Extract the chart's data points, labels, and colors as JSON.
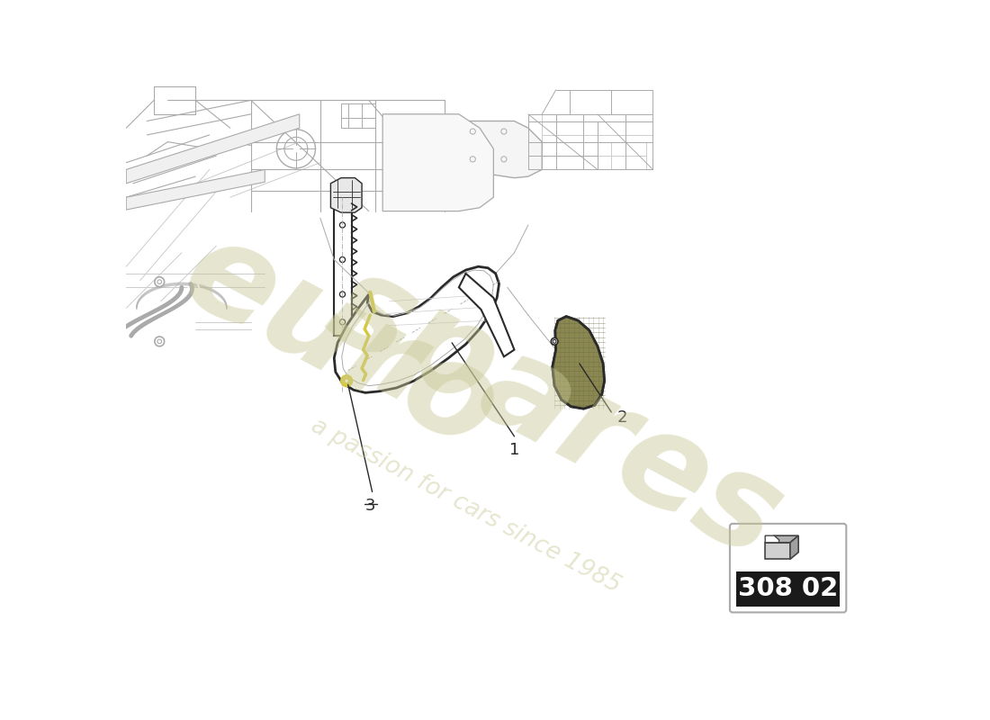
{
  "bg_color": "#ffffff",
  "line_color": "#2a2a2a",
  "mid_line_color": "#555555",
  "light_line_color": "#aaaaaa",
  "very_light_color": "#cccccc",
  "yellow_color": "#d4c840",
  "yellow_light": "#e8e070",
  "watermark_color": "#c8c896",
  "part_number": "308 02",
  "label1": "1",
  "label2": "2",
  "label3": "3",
  "watermark_alpha": 0.45,
  "icon_number_bg": "#1a1a1a",
  "icon_number_color": "#ffffff",
  "grille_fill": "#8a8850",
  "grille_dark": "#666640"
}
